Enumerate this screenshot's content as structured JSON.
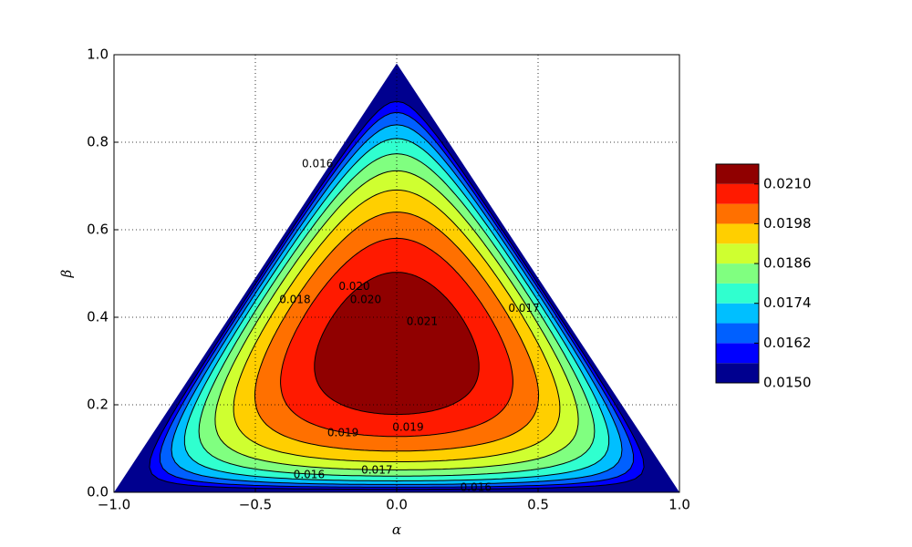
{
  "chart_data": {
    "type": "contourf",
    "xlabel": "α",
    "ylabel": "β",
    "xlim": [
      -1,
      1
    ],
    "ylim": [
      0,
      1
    ],
    "xticks": [
      {
        "value": -1,
        "label": "−1.0"
      },
      {
        "value": -0.5,
        "label": "−0.5"
      },
      {
        "value": 0,
        "label": "0.0"
      },
      0.5,
      {
        "value": 1,
        "label": "1.0"
      }
    ],
    "yticks": [
      {
        "value": 0,
        "label": "0.0"
      },
      0.2,
      0.4,
      0.6,
      0.8,
      {
        "value": 1,
        "label": "1.0"
      }
    ],
    "grid": true,
    "apex": [
      0,
      0.98
    ],
    "levels": [
      0.015,
      0.0156,
      0.0162,
      0.0168,
      0.0174,
      0.018,
      0.0186,
      0.0192,
      0.0198,
      0.0204,
      0.021,
      0.0216
    ],
    "colors": [
      "#00008f",
      "#0000ff",
      "#0060ff",
      "#00bfff",
      "#30ffcf",
      "#80ff80",
      "#cfff30",
      "#ffcf00",
      "#ff7000",
      "#ff1a00",
      "#900000"
    ],
    "colorbar_lim": [
      0.015,
      0.0216
    ],
    "colorbar_ticks": [
      {
        "value": 0.015,
        "label": "0.0150"
      },
      0.0162,
      0.0174,
      0.0186,
      0.0198,
      {
        "value": 0.021,
        "label": "0.0210"
      }
    ],
    "contour_labels": [
      {
        "label": "0.016",
        "x": -0.28,
        "y": 0.75
      },
      {
        "label": "0.018",
        "x": -0.36,
        "y": 0.44
      },
      {
        "label": "0.020",
        "x": -0.15,
        "y": 0.47
      },
      {
        "label": "0.020",
        "x": -0.11,
        "y": 0.44
      },
      {
        "label": "0.021",
        "x": 0.09,
        "y": 0.39
      },
      {
        "label": "0.017",
        "x": 0.45,
        "y": 0.42
      },
      {
        "label": "0.019",
        "x": -0.19,
        "y": 0.135
      },
      {
        "label": "0.019",
        "x": 0.04,
        "y": 0.148
      },
      {
        "label": "0.016",
        "x": -0.31,
        "y": 0.04
      },
      {
        "label": "0.017",
        "x": -0.07,
        "y": 0.05
      },
      {
        "label": "0.016",
        "x": 0.28,
        "y": 0.01
      }
    ]
  }
}
